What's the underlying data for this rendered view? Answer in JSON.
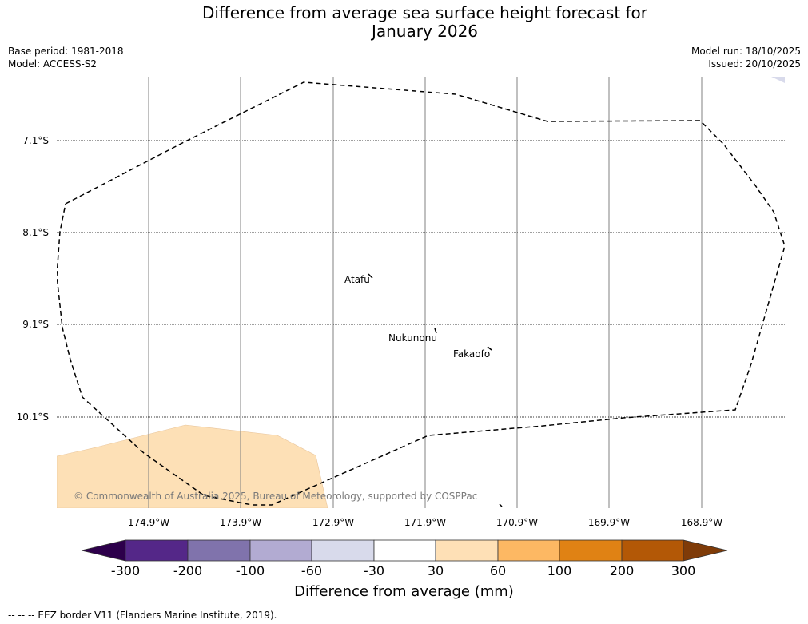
{
  "title": {
    "line1": "Difference from average sea surface height forecast for",
    "line2": "January 2026"
  },
  "meta": {
    "base_period": "Base period: 1981-2018",
    "model": "Model: ACCESS-S2",
    "model_run": "Model run: 18/10/2025",
    "issued": "Issued: 20/10/2025"
  },
  "map": {
    "lat_labels": [
      "7.1°S",
      "8.1°S",
      "9.1°S",
      "10.1°S"
    ],
    "lon_labels": [
      "174.9°W",
      "173.9°W",
      "172.9°W",
      "171.9°W",
      "170.9°W",
      "169.9°W",
      "168.9°W"
    ],
    "places": [
      "Atafu",
      "Nukunonu",
      "Fakaofo"
    ],
    "copyright": "© Commonwealth of Australia 2025, Bureau of Meteorology, supported by COSPPac",
    "anomaly_fill_color": "#fde0b6",
    "eez_color": "#000000"
  },
  "colorbar": {
    "title": "Difference from average (mm)",
    "tick_labels": [
      "-300",
      "-200",
      "-100",
      "-60",
      "-30",
      "30",
      "60",
      "100",
      "200",
      "300"
    ],
    "colors": [
      "#2d004b",
      "#542788",
      "#8073ac",
      "#b2abd2",
      "#d8daeb",
      "#ffffff",
      "#fee0b6",
      "#fdb863",
      "#e08214",
      "#b35806",
      "#7f3b08"
    ]
  },
  "footer": "--  --  -- EEZ border V11 (Flanders Marine Institute, 2019)."
}
